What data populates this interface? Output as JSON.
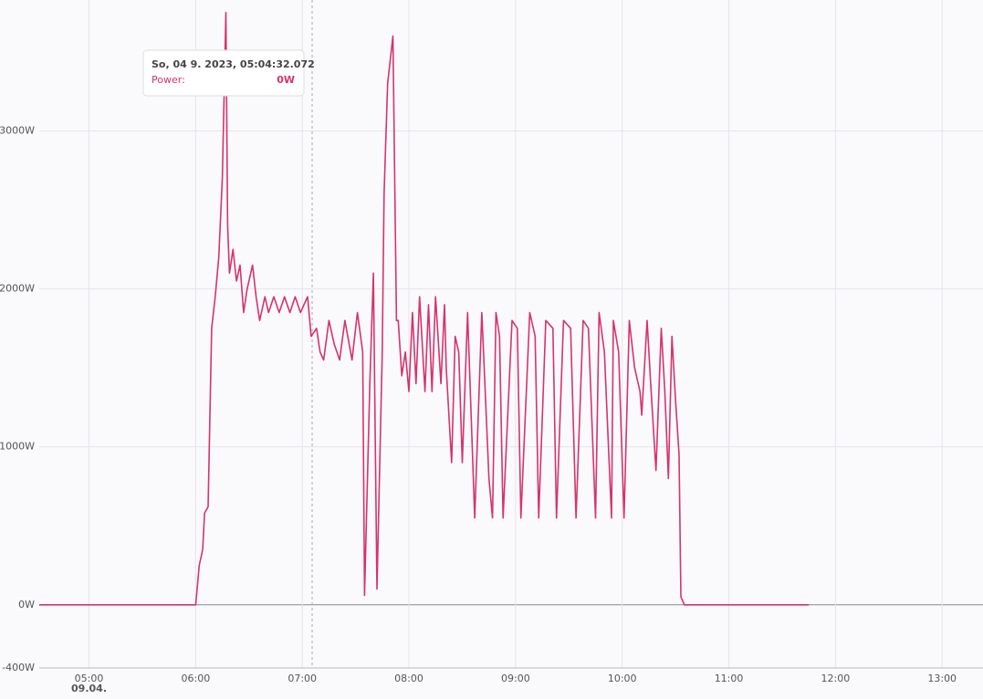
{
  "chart_data": {
    "type": "line",
    "x": [
      "04:32",
      "06:00",
      "06:02",
      "06:04",
      "06:05",
      "06:07",
      "06:09",
      "06:11",
      "06:13",
      "06:15",
      "06:17",
      "06:18",
      "06:19",
      "06:21",
      "06:23",
      "06:25",
      "06:27",
      "06:29",
      "06:32",
      "06:34",
      "06:36",
      "06:39",
      "06:41",
      "06:44",
      "06:47",
      "06:50",
      "06:53",
      "06:56",
      "06:59",
      "07:03",
      "07:05",
      "07:08",
      "07:10",
      "07:12",
      "07:15",
      "07:18",
      "07:21",
      "07:24",
      "07:28",
      "07:31",
      "07:34",
      "07:35",
      "07:38",
      "07:40",
      "07:42",
      "07:45",
      "07:46",
      "07:48",
      "07:51",
      "07:53",
      "07:54",
      "07:56",
      "07:58",
      "08:00",
      "08:02",
      "08:04",
      "08:06",
      "08:09",
      "08:11",
      "08:13",
      "08:15",
      "08:18",
      "08:20",
      "08:21",
      "08:24",
      "08:26",
      "08:28",
      "08:30",
      "08:33",
      "08:37",
      "08:41",
      "08:45",
      "08:47",
      "08:49",
      "08:51",
      "08:53",
      "08:58",
      "09:01",
      "09:03",
      "09:08",
      "09:11",
      "09:13",
      "09:17",
      "09:21",
      "09:23",
      "09:27",
      "09:31",
      "09:34",
      "09:38",
      "09:41",
      "09:45",
      "09:47",
      "09:50",
      "09:54",
      "09:55",
      "09:58",
      "10:01",
      "10:04",
      "10:07",
      "10:10",
      "10:11",
      "10:14",
      "10:16",
      "10:19",
      "10:22",
      "10:24",
      "10:26",
      "10:28",
      "10:30",
      "10:32",
      "10:33",
      "10:35",
      "11:45"
    ],
    "series": [
      {
        "name": "Power",
        "color": "#d6336c",
        "values": [
          0,
          0,
          250,
          350,
          580,
          620,
          1750,
          1950,
          2200,
          2700,
          3750,
          2400,
          2100,
          2250,
          2050,
          2150,
          1850,
          2000,
          2150,
          1950,
          1800,
          1950,
          1850,
          1950,
          1850,
          1950,
          1850,
          1950,
          1850,
          1950,
          1700,
          1750,
          1600,
          1550,
          1800,
          1650,
          1550,
          1800,
          1550,
          1850,
          1600,
          60,
          1400,
          2100,
          100,
          1600,
          2600,
          3300,
          3600,
          1800,
          1800,
          1450,
          1600,
          1350,
          1850,
          1400,
          1950,
          1350,
          1900,
          1350,
          1950,
          1400,
          1900,
          1500,
          900,
          1700,
          1600,
          900,
          1850,
          550,
          1850,
          800,
          550,
          1850,
          1700,
          550,
          1800,
          1750,
          550,
          1850,
          1700,
          550,
          1800,
          1750,
          550,
          1800,
          1750,
          550,
          1800,
          1750,
          550,
          1850,
          1600,
          550,
          1800,
          1600,
          550,
          1800,
          1500,
          1350,
          1200,
          1800,
          1400,
          850,
          1750,
          1350,
          800,
          1700,
          1300,
          950,
          50,
          0,
          0
        ]
      }
    ],
    "xlim": [
      "04:32",
      "13:23"
    ],
    "xticks": [
      "05:00",
      "06:00",
      "07:00",
      "08:00",
      "09:00",
      "10:00",
      "11:00",
      "12:00",
      "13:00"
    ],
    "date_label": "09.04.",
    "ylim": [
      -400,
      3800
    ],
    "yticks": [
      {
        "value": -400,
        "label": "-400W"
      },
      {
        "value": 0,
        "label": "0W"
      },
      {
        "value": 1000,
        "label": "1000W"
      },
      {
        "value": 2000,
        "label": "2000W"
      },
      {
        "value": 3000,
        "label": "3000W"
      }
    ],
    "grid": true,
    "tooltip": {
      "title": "So, 04 9. 2023, 05:04:32.072",
      "label": "Power:",
      "value": "0W"
    }
  }
}
